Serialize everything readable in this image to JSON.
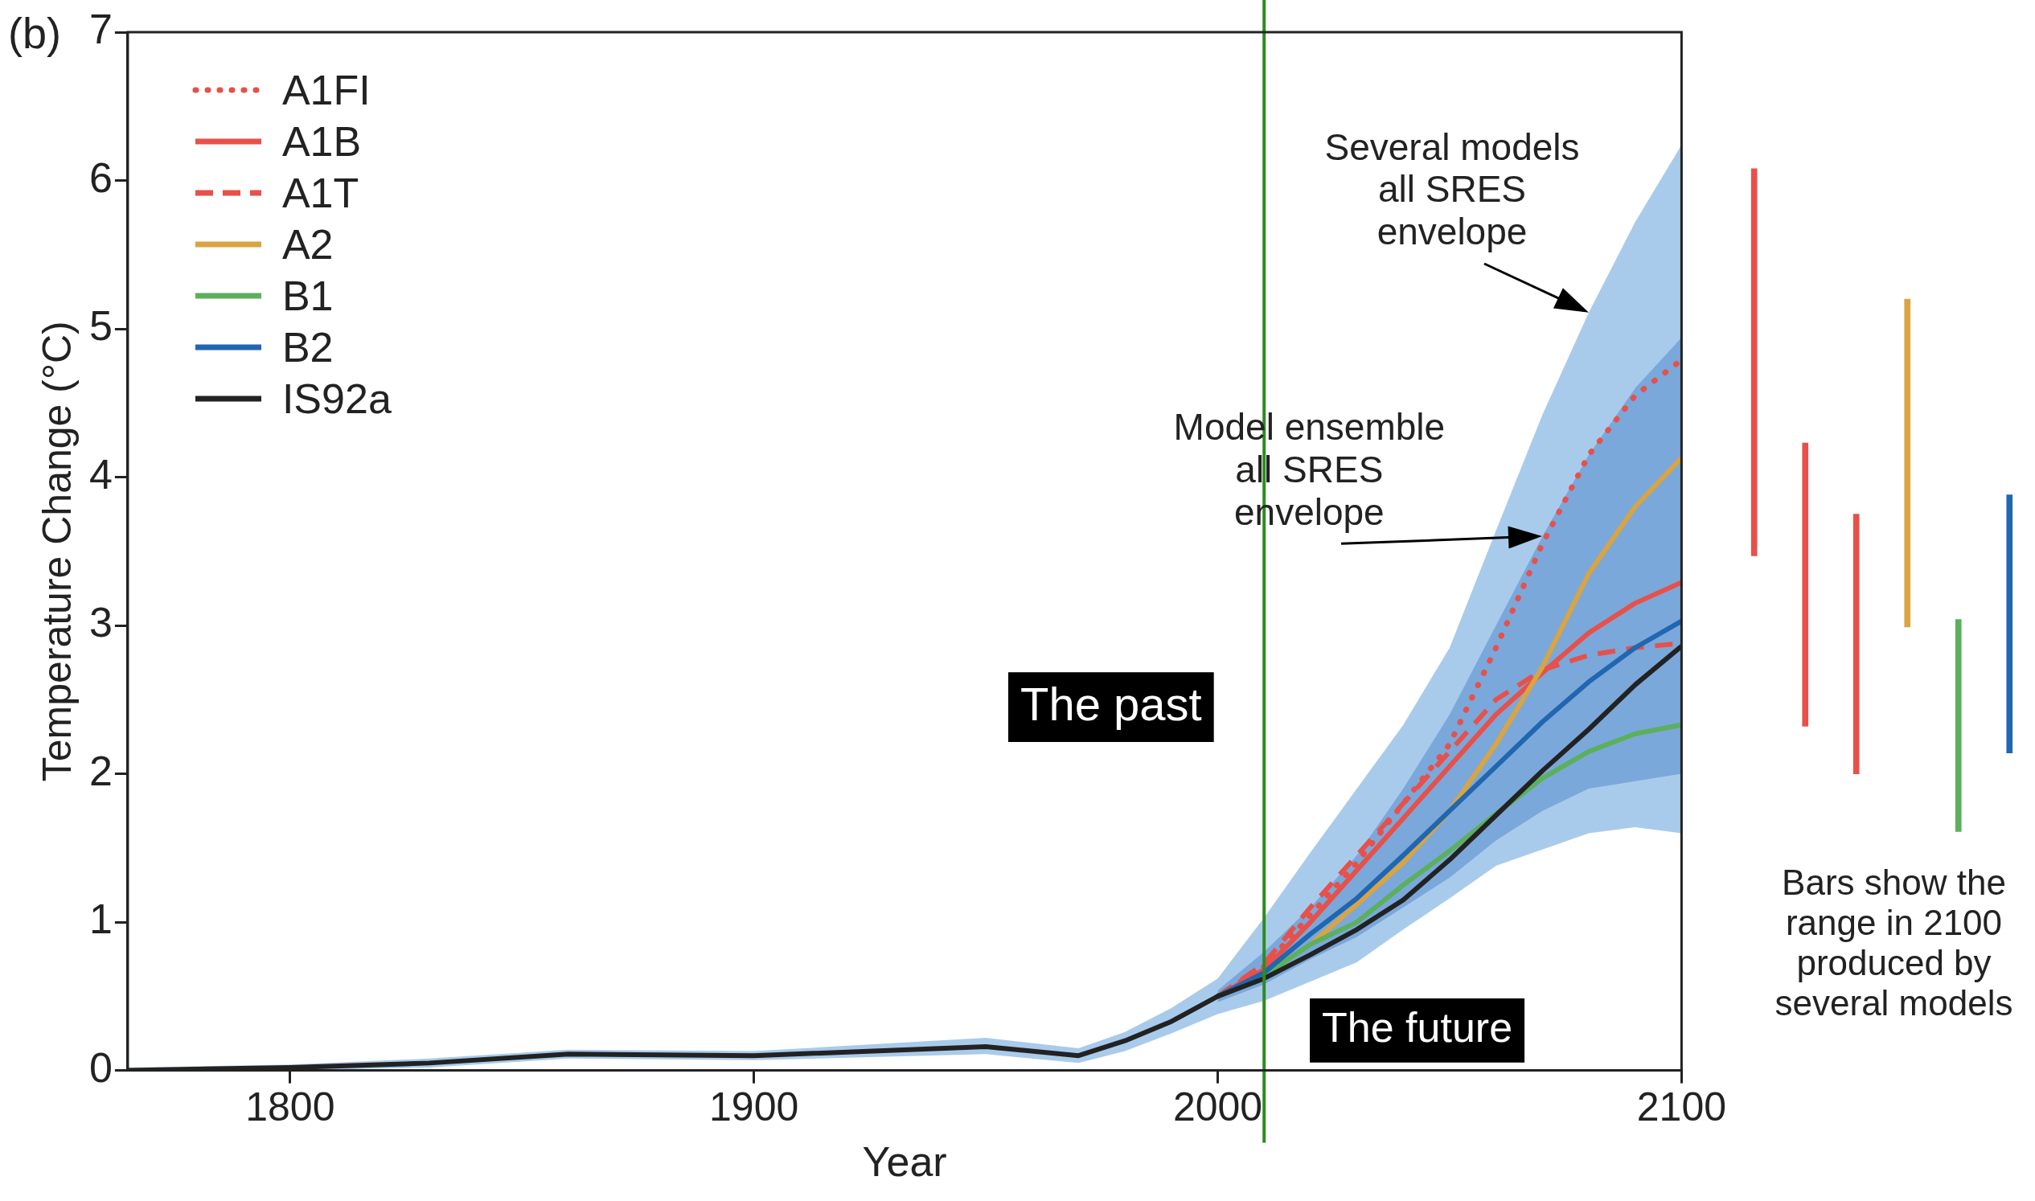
{
  "chart_data": [
    {
      "type": "line",
      "xlabel": "Year",
      "ylabel": "Temperature Change (°C)",
      "xlim": [
        1765,
        2100
      ],
      "ylim": [
        0,
        7
      ],
      "xticks": [
        1800,
        1900,
        2000,
        2100
      ],
      "yticks": [
        0,
        1,
        2,
        3,
        4,
        5,
        6,
        7
      ],
      "grid": false,
      "legend": "top left",
      "x": [
        1765,
        1800,
        1830,
        1860,
        1900,
        1950,
        1970,
        1980,
        1990,
        2000,
        2010,
        2020,
        2030,
        2040,
        2050,
        2060,
        2070,
        2080,
        2090,
        2100
      ],
      "series": [
        {
          "name": "A1FI",
          "color": "#e8504a",
          "line_style": "dotted",
          "values": [
            null,
            null,
            null,
            null,
            null,
            null,
            null,
            null,
            null,
            0.5,
            0.7,
            1.05,
            1.4,
            1.8,
            2.2,
            2.85,
            3.55,
            4.15,
            4.55,
            4.79
          ]
        },
        {
          "name": "A1B",
          "color": "#e8504a",
          "line_style": "solid",
          "values": [
            null,
            null,
            null,
            null,
            null,
            null,
            null,
            null,
            null,
            0.5,
            0.68,
            1.0,
            1.35,
            1.7,
            2.05,
            2.4,
            2.68,
            2.95,
            3.15,
            3.29
          ],
          "lower": [
            null,
            null,
            null,
            null,
            null,
            null,
            null,
            null,
            null,
            0.46,
            0.58,
            0.75,
            0.9,
            1.1,
            1.3,
            1.55,
            1.75,
            1.9,
            1.95,
            2.0
          ],
          "upper": [
            null,
            null,
            null,
            null,
            null,
            null,
            null,
            null,
            null,
            0.54,
            0.8,
            1.1,
            1.45,
            1.9,
            2.4,
            3.0,
            3.6,
            4.15,
            4.6,
            4.94
          ]
        },
        {
          "name": "A1T",
          "color": "#e8504a",
          "line_style": "dashed",
          "values": [
            null,
            null,
            null,
            null,
            null,
            null,
            null,
            null,
            null,
            0.5,
            0.72,
            1.1,
            1.45,
            1.8,
            2.15,
            2.5,
            2.7,
            2.8,
            2.85,
            2.88
          ]
        },
        {
          "name": "A2",
          "color": "#d9a441",
          "line_style": "solid",
          "values": [
            null,
            null,
            null,
            null,
            null,
            null,
            null,
            null,
            null,
            0.5,
            0.64,
            0.85,
            1.12,
            1.4,
            1.75,
            2.2,
            2.72,
            3.35,
            3.8,
            4.13
          ]
        },
        {
          "name": "B1",
          "color": "#5cb05c",
          "line_style": "solid",
          "values": [
            null,
            null,
            null,
            null,
            null,
            null,
            null,
            null,
            null,
            0.5,
            0.64,
            0.85,
            1.0,
            1.25,
            1.48,
            1.73,
            1.97,
            2.15,
            2.27,
            2.33
          ]
        },
        {
          "name": "B2",
          "color": "#2166b0",
          "line_style": "solid",
          "values": [
            null,
            null,
            null,
            null,
            null,
            null,
            null,
            null,
            null,
            0.5,
            0.66,
            0.92,
            1.16,
            1.45,
            1.75,
            2.05,
            2.35,
            2.62,
            2.85,
            3.03
          ]
        },
        {
          "name": "IS92a",
          "color": "#222222",
          "line_style": "solid",
          "values": [
            0,
            0.02,
            0.05,
            0.11,
            0.1,
            0.16,
            0.1,
            0.2,
            0.33,
            0.5,
            0.62,
            0.78,
            0.95,
            1.15,
            1.42,
            1.72,
            2.02,
            2.3,
            2.6,
            2.86
          ],
          "lower": [
            0,
            0,
            0.02,
            0.08,
            0.07,
            0.11,
            0.05,
            0.13,
            0.25,
            0.38,
            0.47,
            0.6,
            0.73,
            0.95,
            1.16,
            1.38,
            1.49,
            1.6,
            1.64,
            1.6
          ],
          "upper": [
            0.02,
            0.04,
            0.08,
            0.14,
            0.13,
            0.22,
            0.15,
            0.26,
            0.42,
            0.62,
            1.03,
            1.47,
            1.9,
            2.33,
            2.85,
            3.64,
            4.42,
            5.11,
            5.72,
            6.24
          ]
        }
      ],
      "ref_lines": [
        {
          "axis": "x",
          "value": 2010,
          "color": "#2e8b22"
        }
      ],
      "annotations": [
        "(b)",
        "The past",
        "The future",
        {
          "text": "Several models\nall SRES\nenvelope",
          "x": 2080,
          "y": 5.11
        },
        {
          "text": "Model ensemble\nall SRES\nenvelope",
          "x": 2070,
          "y": 3.6
        }
      ]
    },
    {
      "type": "bar",
      "categories": [
        null,
        null,
        null,
        null,
        null,
        null
      ],
      "base": [
        3.47,
        2.32,
        2.0,
        2.99,
        1.61,
        2.14
      ],
      "values": [
        2.61,
        1.91,
        1.75,
        2.21,
        1.43,
        1.74
      ],
      "colors": [
        "#e8504a",
        "#e8504a",
        "#e8504a",
        "#d9a441",
        "#5cb05c",
        "#2166b0"
      ],
      "ylim": [
        0,
        7
      ],
      "tick_labels": false,
      "annotations": [
        "Bars show the\nrange in 2100\nproduced by\nseveral models"
      ]
    }
  ]
}
